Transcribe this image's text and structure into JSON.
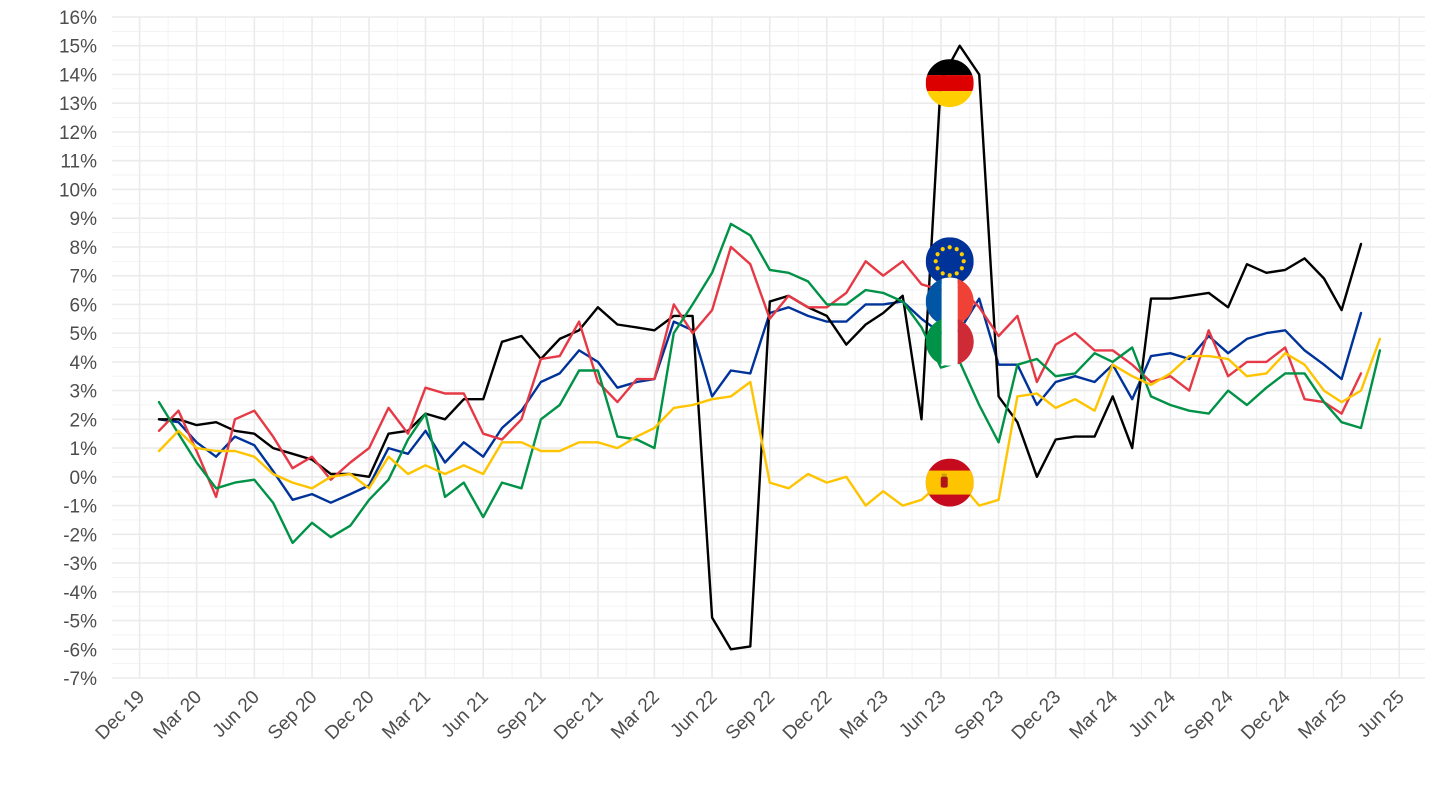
{
  "chart_data": {
    "type": "line",
    "title": "",
    "xlabel": "",
    "ylabel": "",
    "ylim": [
      -7,
      16
    ],
    "xlim": [
      "2019-10-18",
      "2025-07-12"
    ],
    "grid": true,
    "legend": "none (country flag markers placed on the lines)",
    "x_ticks": [
      {
        "date": "2019-12-01",
        "label": "Dec 19"
      },
      {
        "date": "2020-03-01",
        "label": "Mar 20"
      },
      {
        "date": "2020-06-01",
        "label": "Jun 20"
      },
      {
        "date": "2020-09-01",
        "label": "Sep 20"
      },
      {
        "date": "2020-12-01",
        "label": "Dec 20"
      },
      {
        "date": "2021-03-01",
        "label": "Mar 21"
      },
      {
        "date": "2021-06-01",
        "label": "Jun 21"
      },
      {
        "date": "2021-09-01",
        "label": "Sep 21"
      },
      {
        "date": "2021-12-01",
        "label": "Dec 21"
      },
      {
        "date": "2022-03-01",
        "label": "Mar 22"
      },
      {
        "date": "2022-06-01",
        "label": "Jun 22"
      },
      {
        "date": "2022-09-01",
        "label": "Sep 22"
      },
      {
        "date": "2022-12-01",
        "label": "Dec 22"
      },
      {
        "date": "2023-03-01",
        "label": "Mar 23"
      },
      {
        "date": "2023-06-01",
        "label": "Jun 23"
      },
      {
        "date": "2023-09-01",
        "label": "Sep 23"
      },
      {
        "date": "2023-12-01",
        "label": "Dec 23"
      },
      {
        "date": "2024-03-01",
        "label": "Mar 24"
      },
      {
        "date": "2024-06-01",
        "label": "Jun 24"
      },
      {
        "date": "2024-09-01",
        "label": "Sep 24"
      },
      {
        "date": "2024-12-01",
        "label": "Dec 24"
      },
      {
        "date": "2025-03-01",
        "label": "Mar 25"
      },
      {
        "date": "2025-06-01",
        "label": "Jun 25"
      }
    ],
    "y_ticks": [
      {
        "value": -7,
        "label": "-7%"
      },
      {
        "value": -6,
        "label": "-6%"
      },
      {
        "value": -5,
        "label": "-5%"
      },
      {
        "value": -4,
        "label": "-4%"
      },
      {
        "value": -3,
        "label": "-3%"
      },
      {
        "value": -2,
        "label": "-2%"
      },
      {
        "value": -1,
        "label": "-1%"
      },
      {
        "value": 0,
        "label": "0%"
      },
      {
        "value": 1,
        "label": "1%"
      },
      {
        "value": 2,
        "label": "2%"
      },
      {
        "value": 3,
        "label": "3%"
      },
      {
        "value": 4,
        "label": "4%"
      },
      {
        "value": 5,
        "label": "5%"
      },
      {
        "value": 6,
        "label": "6%"
      },
      {
        "value": 7,
        "label": "7%"
      },
      {
        "value": 8,
        "label": "8%"
      },
      {
        "value": 9,
        "label": "9%"
      },
      {
        "value": 10,
        "label": "10%"
      },
      {
        "value": 11,
        "label": "11%"
      },
      {
        "value": 12,
        "label": "12%"
      },
      {
        "value": 13,
        "label": "13%"
      },
      {
        "value": 14,
        "label": "14%"
      },
      {
        "value": 15,
        "label": "15%"
      },
      {
        "value": 16,
        "label": "16%"
      }
    ],
    "x": [
      "2020-01-01",
      "2020-02-01",
      "2020-03-01",
      "2020-04-01",
      "2020-05-01",
      "2020-06-01",
      "2020-07-01",
      "2020-08-01",
      "2020-09-01",
      "2020-10-01",
      "2020-11-01",
      "2020-12-01",
      "2021-01-01",
      "2021-02-01",
      "2021-03-01",
      "2021-04-01",
      "2021-05-01",
      "2021-06-01",
      "2021-07-01",
      "2021-08-01",
      "2021-09-01",
      "2021-10-01",
      "2021-11-01",
      "2021-12-01",
      "2022-01-01",
      "2022-02-01",
      "2022-03-01",
      "2022-04-01",
      "2022-05-01",
      "2022-06-01",
      "2022-07-01",
      "2022-08-01",
      "2022-09-01",
      "2022-10-01",
      "2022-11-01",
      "2022-12-01",
      "2023-01-01",
      "2023-02-01",
      "2023-03-01",
      "2023-04-01",
      "2023-05-01",
      "2023-06-01",
      "2023-07-01",
      "2023-08-01",
      "2023-09-01",
      "2023-10-01",
      "2023-11-01",
      "2023-12-01",
      "2024-01-01",
      "2024-02-01",
      "2024-03-01",
      "2024-04-01",
      "2024-05-01",
      "2024-06-01",
      "2024-07-01",
      "2024-08-01",
      "2024-09-01",
      "2024-10-01",
      "2024-11-01",
      "2024-12-01",
      "2025-01-01",
      "2025-02-01",
      "2025-03-01",
      "2025-04-01",
      "2025-05-01"
    ],
    "series": [
      {
        "flag": "euro-area",
        "color": "#003399",
        "values": [
          2.0,
          1.9,
          1.2,
          0.7,
          1.4,
          1.1,
          0.2,
          -0.8,
          -0.6,
          -0.9,
          -0.6,
          -0.3,
          1.0,
          0.8,
          1.6,
          0.5,
          1.2,
          0.7,
          1.7,
          2.3,
          3.3,
          3.6,
          4.4,
          4.0,
          3.1,
          3.3,
          3.4,
          5.4,
          5.1,
          2.8,
          3.7,
          3.6,
          5.7,
          5.9,
          5.6,
          5.4,
          5.4,
          6.0,
          6.0,
          6.1,
          5.5,
          5.0,
          5.1,
          6.2,
          3.9,
          3.9,
          2.5,
          3.3,
          3.5,
          3.3,
          3.9,
          2.7,
          4.2,
          4.3,
          4.1,
          4.9,
          4.3,
          4.8,
          5.0,
          5.1,
          4.4,
          3.9,
          3.4,
          5.7,
          null
        ]
      },
      {
        "flag": "germany",
        "color": "#000000",
        "values": [
          2.0,
          2.0,
          1.8,
          1.9,
          1.6,
          1.5,
          1.0,
          0.8,
          0.6,
          0.1,
          0.1,
          0.0,
          1.5,
          1.6,
          2.2,
          2.0,
          2.7,
          2.7,
          4.7,
          4.9,
          4.1,
          4.8,
          5.1,
          5.9,
          5.3,
          5.2,
          5.1,
          5.6,
          5.6,
          -4.9,
          -6.0,
          -5.9,
          6.1,
          6.3,
          5.9,
          5.6,
          4.6,
          5.3,
          5.7,
          6.3,
          2.0,
          13.8,
          15.0,
          14.0,
          2.8,
          1.9,
          0.0,
          1.3,
          1.4,
          1.4,
          2.8,
          1.0,
          6.2,
          6.2,
          6.3,
          6.4,
          5.9,
          7.4,
          7.1,
          7.2,
          7.6,
          6.9,
          5.8,
          8.1,
          null
        ]
      },
      {
        "flag": "france",
        "color": "#e63946",
        "values": [
          1.6,
          2.3,
          0.9,
          -0.7,
          2.0,
          2.3,
          1.4,
          0.3,
          0.7,
          -0.1,
          0.5,
          1.0,
          2.4,
          1.5,
          3.1,
          2.9,
          2.9,
          1.5,
          1.3,
          2.0,
          4.1,
          4.2,
          5.4,
          3.3,
          2.6,
          3.4,
          3.4,
          6.0,
          5.0,
          5.8,
          8.0,
          7.4,
          5.5,
          6.3,
          5.9,
          5.9,
          6.4,
          7.5,
          7.0,
          7.5,
          6.7,
          6.5,
          6.6,
          5.9,
          4.9,
          5.6,
          3.3,
          4.6,
          5.0,
          4.4,
          4.4,
          3.9,
          3.3,
          3.5,
          3.0,
          5.1,
          3.5,
          4.0,
          4.0,
          4.5,
          2.7,
          2.6,
          2.2,
          3.6,
          null
        ]
      },
      {
        "flag": "italy",
        "color": "#009246",
        "values": [
          2.6,
          1.5,
          0.5,
          -0.4,
          -0.2,
          -0.1,
          -0.9,
          -2.3,
          -1.6,
          -2.1,
          -1.7,
          -0.8,
          -0.1,
          1.3,
          2.2,
          -0.7,
          -0.2,
          -1.4,
          -0.2,
          -0.4,
          2.0,
          2.5,
          3.7,
          3.7,
          1.4,
          1.3,
          1.0,
          5.0,
          6.0,
          7.1,
          8.8,
          8.4,
          7.2,
          7.1,
          6.8,
          6.0,
          6.0,
          6.5,
          6.4,
          6.1,
          5.2,
          3.8,
          4.0,
          2.5,
          1.2,
          3.9,
          4.1,
          3.5,
          3.6,
          4.3,
          4.0,
          4.5,
          2.8,
          2.5,
          2.3,
          2.2,
          3.0,
          2.5,
          3.1,
          3.6,
          3.6,
          2.6,
          1.9,
          1.7,
          4.4
        ]
      },
      {
        "flag": "spain",
        "color": "#ffc400",
        "values": [
          0.9,
          1.6,
          1.0,
          0.9,
          0.9,
          0.7,
          0.1,
          -0.2,
          -0.4,
          0.0,
          0.1,
          -0.4,
          0.7,
          0.1,
          0.4,
          0.1,
          0.4,
          0.1,
          1.2,
          1.2,
          0.9,
          0.9,
          1.2,
          1.2,
          1.0,
          1.4,
          1.7,
          2.4,
          2.5,
          2.7,
          2.8,
          3.3,
          -0.2,
          -0.4,
          0.1,
          -0.2,
          0.0,
          -1.0,
          -0.5,
          -1.0,
          -0.8,
          -0.2,
          -0.2,
          -1.0,
          -0.8,
          2.8,
          2.9,
          2.4,
          2.7,
          2.3,
          3.9,
          3.5,
          3.2,
          3.6,
          4.2,
          4.2,
          4.1,
          3.5,
          3.6,
          4.3,
          3.9,
          3.0,
          2.6,
          3.0,
          4.8
        ]
      }
    ],
    "flag_markers": [
      {
        "flag": "germany",
        "x": "2023-06-15",
        "y": 13.7
      },
      {
        "flag": "euro-area",
        "x": "2023-06-15",
        "y": 7.5
      },
      {
        "flag": "france",
        "x": "2023-06-15",
        "y": 6.1
      },
      {
        "flag": "italy",
        "x": "2023-06-15",
        "y": 4.7
      },
      {
        "flag": "spain",
        "x": "2023-06-15",
        "y": -0.2
      }
    ]
  }
}
